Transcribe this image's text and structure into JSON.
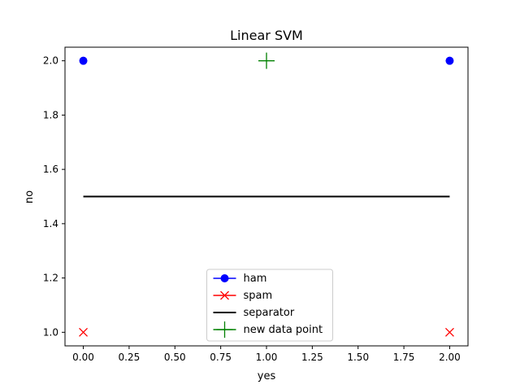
{
  "chart_data": {
    "type": "scatter",
    "title": "Linear SVM",
    "xlabel": "yes",
    "ylabel": "no",
    "xlim": [
      -0.1,
      2.1
    ],
    "ylim": [
      0.95,
      2.05
    ],
    "xticks": [
      "0.00",
      "0.25",
      "0.50",
      "0.75",
      "1.00",
      "1.25",
      "1.50",
      "1.75",
      "2.00"
    ],
    "yticks": [
      "1.0",
      "1.2",
      "1.4",
      "1.6",
      "1.8",
      "2.0"
    ],
    "grid": false,
    "legend_position": "lower center",
    "series": [
      {
        "name": "ham",
        "marker": "circle",
        "color": "#0000ff",
        "points": [
          [
            0,
            2
          ],
          [
            2,
            2
          ]
        ]
      },
      {
        "name": "spam",
        "marker": "x",
        "color": "#ff0000",
        "points": [
          [
            0,
            1
          ],
          [
            2,
            1
          ]
        ]
      },
      {
        "name": "separator",
        "marker": "line",
        "color": "#000000",
        "points": [
          [
            0,
            1.5
          ],
          [
            2,
            1.5
          ]
        ]
      },
      {
        "name": "new data point",
        "marker": "plus",
        "color": "#008000",
        "points": [
          [
            1,
            2
          ]
        ]
      }
    ]
  }
}
